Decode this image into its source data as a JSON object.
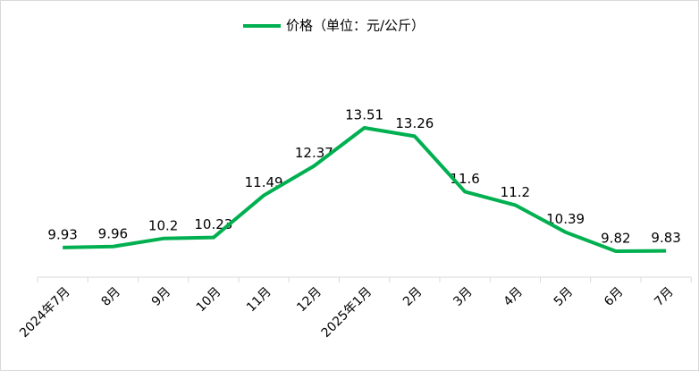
{
  "chart_data": {
    "type": "line",
    "categories": [
      "2024年7月",
      "8月",
      "9月",
      "10月",
      "11月",
      "12月",
      "2025年1月",
      "2月",
      "3月",
      "4月",
      "5月",
      "6月",
      "7月"
    ],
    "series": [
      {
        "name": "价格（单位：元/公斤）",
        "color": "#00b050",
        "values": [
          9.93,
          9.96,
          10.2,
          10.23,
          11.49,
          12.37,
          13.51,
          13.26,
          11.6,
          11.2,
          10.39,
          9.82,
          9.83
        ]
      }
    ],
    "legend": "top"
  }
}
